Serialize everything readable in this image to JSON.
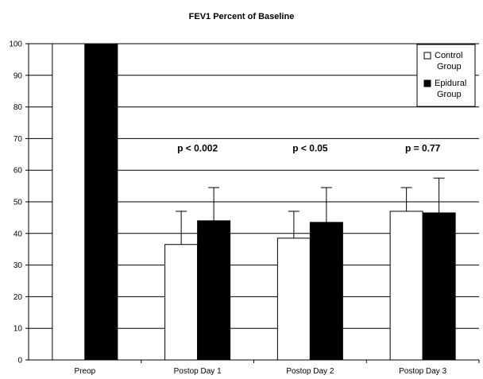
{
  "chart_data": {
    "type": "bar",
    "title": "FEV1 Percent of Baseline",
    "xlabel": "",
    "ylabel": "",
    "categories": [
      "Preop",
      "Postop Day 1",
      "Postop Day 2",
      "Postop Day 3"
    ],
    "ylim": [
      0,
      100
    ],
    "yticks": [
      0,
      10,
      20,
      30,
      40,
      50,
      60,
      70,
      80,
      90,
      100
    ],
    "grid": true,
    "legend_position": "top-right",
    "series": [
      {
        "name": "Control Group",
        "color": "#ffffff",
        "values": [
          100,
          36.5,
          38.5,
          47
        ],
        "error_upper": [
          0,
          10.5,
          8.5,
          7.5
        ]
      },
      {
        "name": "Epidural Group",
        "color": "#000000",
        "values": [
          100,
          44,
          43.5,
          46.5
        ],
        "error_upper": [
          0,
          10.5,
          11,
          11
        ]
      }
    ],
    "annotations": [
      {
        "category": "Postop Day 1",
        "text": "p < 0.002",
        "y": 66
      },
      {
        "category": "Postop Day 2",
        "text": "p < 0.05",
        "y": 66
      },
      {
        "category": "Postop Day 3",
        "text": "p = 0.77",
        "y": 66
      }
    ]
  }
}
